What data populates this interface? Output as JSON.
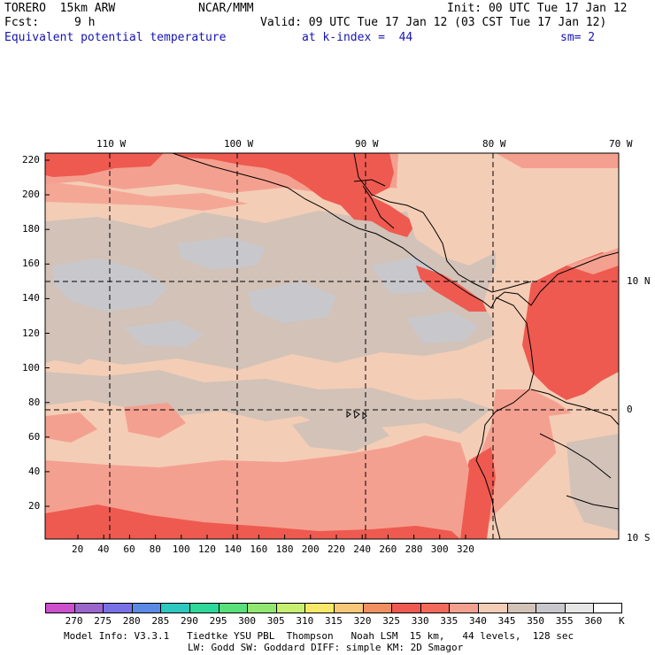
{
  "header": {
    "model": "TORERO  15km ARW",
    "org": "NCAR/MMM",
    "init": "Init: 00 UTC Tue 17 Jan 12",
    "fcst_label": "Fcst:",
    "fcst_value": "9 h",
    "valid": "Valid: 09 UTC Tue 17 Jan 12 (03 CST Tue 17 Jan 12)",
    "field": "Equivalent potential temperature",
    "level": "at k-index =  44",
    "smoothing": "sm= 2"
  },
  "map": {
    "top_lon_labels": [
      "110 W",
      "100 W",
      "90 W",
      "80 W",
      "70 W"
    ],
    "right_lat_labels": [
      "10 N",
      "0",
      "10 S"
    ],
    "left_y_ticks": [
      "220",
      "200",
      "180",
      "160",
      "140",
      "120",
      "100",
      "80",
      "60",
      "40",
      "20"
    ],
    "bottom_x_ticks": [
      "20",
      "40",
      "60",
      "80",
      "100",
      "120",
      "140",
      "160",
      "180",
      "200",
      "220",
      "240",
      "260",
      "280",
      "300",
      "320"
    ]
  },
  "colorbar": {
    "labels": [
      "270",
      "275",
      "280",
      "285",
      "290",
      "295",
      "300",
      "305",
      "310",
      "315",
      "320",
      "325",
      "330",
      "335",
      "340",
      "345",
      "350",
      "355",
      "360",
      "K"
    ],
    "colors": [
      "#cc4fcc",
      "#9a66cc",
      "#7a70e6",
      "#5a8ae6",
      "#2ec8c0",
      "#2ed89a",
      "#58e07a",
      "#90e870",
      "#c8f070",
      "#f8e868",
      "#f8c878",
      "#f09060",
      "#ee5a50",
      "#f46a5a",
      "#f4a090",
      "#f4cdb6",
      "#d2c2b8",
      "#c8c8cc",
      "#e6e6e6",
      "#ffffff"
    ]
  },
  "footer": {
    "line1": "Model Info: V3.3.1   Tiedtke YSU PBL  Thompson   Noah LSM  15 km,   44 levels,  128 sec",
    "line2": "LW: Godd SW: Goddard DIFF: simple KM: 2D Smagor"
  }
}
